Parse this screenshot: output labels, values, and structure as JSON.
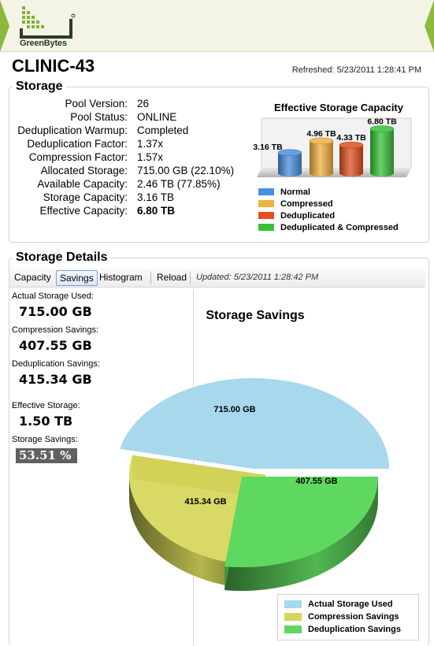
{
  "brand": {
    "name": "GreenBytes"
  },
  "page": {
    "title": "CLINIC-43",
    "refreshed": "Refreshed: 5/23/2011 1:28:41 PM"
  },
  "storage": {
    "section_title": "Storage",
    "rows": [
      {
        "label": "Pool Version:",
        "value": "26"
      },
      {
        "label": "Pool Status:",
        "value": "ONLINE"
      },
      {
        "label": "Deduplication Warmup:",
        "value": "Completed"
      },
      {
        "label": "Deduplication Factor:",
        "value": "1.37x"
      },
      {
        "label": "Compression Factor:",
        "value": "1.57x"
      },
      {
        "label": "Allocated Storage:",
        "value": "715.00 GB (22.10%)"
      },
      {
        "label": "Available Capacity:",
        "value": "2.46 TB (77.85%)"
      },
      {
        "label": "Storage Capacity:",
        "value": "3.16 TB"
      },
      {
        "label": "Effective Capacity:",
        "value": "6.80 TB"
      }
    ]
  },
  "capacity_chart": {
    "title": "Effective Storage Capacity",
    "legend": [
      "Normal",
      "Compressed",
      "Deduplicated",
      "Deduplicated & Compressed"
    ],
    "colors": [
      "#4a8fe0",
      "#f0b040",
      "#e05020",
      "#38c038"
    ],
    "labels": [
      "3.16 TB",
      "4.96 TB",
      "4.33 TB",
      "6.80 TB"
    ]
  },
  "details": {
    "section_title": "Storage Details",
    "toolbar": {
      "capacity": "Capacity",
      "savings": "Savings",
      "histogram": "Histogram",
      "reload": "Reload",
      "updated": "Updated: 5/23/2011 1:28:42 PM"
    },
    "stats": {
      "actual_label": "Actual Storage Used:",
      "actual_value": "715.00 GB",
      "compression_label": "Compression Savings:",
      "compression_value": "407.55 GB",
      "dedup_label": "Deduplication Savings:",
      "dedup_value": "415.34 GB",
      "effective_label": "Effective Storage:",
      "effective_value": "1.50 TB",
      "savings_label": "Storage Savings:",
      "savings_value": "53.51 %"
    }
  },
  "chart_data": [
    {
      "type": "bar",
      "title": "Effective Storage Capacity",
      "categories": [
        "Normal",
        "Compressed",
        "Deduplicated",
        "Deduplicated & Compressed"
      ],
      "values": [
        3.16,
        4.96,
        4.33,
        6.8
      ],
      "data_labels": [
        "3.16 TB",
        "4.96 TB",
        "4.33 TB",
        "6.80 TB"
      ],
      "colors": [
        "#4a8fe0",
        "#f0b040",
        "#e05020",
        "#38c038"
      ],
      "legend_position": "bottom"
    },
    {
      "type": "pie",
      "title": "Storage Savings",
      "labels": [
        "Actual Storage Used",
        "Compression Savings",
        "Deduplication Savings"
      ],
      "values": [
        715.0,
        407.55,
        415.34
      ],
      "data_labels": [
        "715.00 GB",
        "407.55 GB",
        "415.34 GB"
      ],
      "colors": [
        "#a7d8ec",
        "#d6d65a",
        "#5fd85f"
      ],
      "legend_position": "bottom-right"
    }
  ]
}
